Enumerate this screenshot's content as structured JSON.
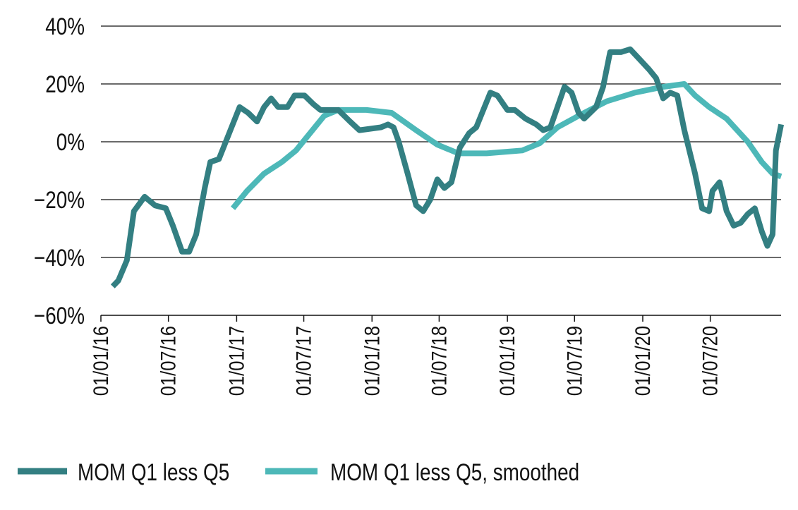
{
  "chart_data": {
    "type": "line",
    "title": "",
    "xlabel": "",
    "ylabel": "",
    "ylim": [
      -60,
      40
    ],
    "yticks": [
      40,
      20,
      0,
      -20,
      -40,
      -60
    ],
    "ytick_labels": [
      "40%",
      "20%",
      "0%",
      "−20%",
      "−40%",
      "−60%"
    ],
    "xlim": [
      "2016-01-01",
      "2021-01-08"
    ],
    "xticks": [
      "2016-01-01",
      "2016-07-01",
      "2017-01-01",
      "2017-07-01",
      "2018-01-01",
      "2018-07-01",
      "2019-01-01",
      "2019-07-01",
      "2020-01-01",
      "2020-07-01"
    ],
    "xtick_labels": [
      "01/01/16",
      "01/07/16",
      "01/01/17",
      "01/07/17",
      "01/01/18",
      "01/07/18",
      "01/01/19",
      "01/07/19",
      "01/01/20",
      "01/07/20"
    ],
    "grid": "horizontal",
    "legend_position": "bottom",
    "series": [
      {
        "name": "MOM Q1 less Q5",
        "color": "#337f82",
        "x": [
          "2016-02-02",
          "2016-02-17",
          "2016-03-11",
          "2016-03-30",
          "2016-04-28",
          "2016-05-26",
          "2016-06-24",
          "2016-07-13",
          "2016-08-07",
          "2016-08-26",
          "2016-09-14",
          "2016-10-07",
          "2016-10-22",
          "2016-11-14",
          "2016-12-12",
          "2017-01-09",
          "2017-02-01",
          "2017-02-25",
          "2017-03-16",
          "2017-04-04",
          "2017-04-23",
          "2017-05-18",
          "2017-06-06",
          "2017-07-03",
          "2017-07-27",
          "2017-08-15",
          "2017-10-02",
          "2017-11-03",
          "2017-11-28",
          "2018-01-25",
          "2018-02-13",
          "2018-02-28",
          "2018-03-14",
          "2018-04-07",
          "2018-04-30",
          "2018-05-19",
          "2018-06-07",
          "2018-06-26",
          "2018-07-15",
          "2018-08-03",
          "2018-08-26",
          "2018-09-20",
          "2018-10-09",
          "2018-10-28",
          "2018-11-16",
          "2018-12-05",
          "2019-01-01",
          "2019-01-21",
          "2019-02-19",
          "2019-03-20",
          "2019-04-08",
          "2019-04-27",
          "2019-05-16",
          "2019-06-04",
          "2019-06-23",
          "2019-07-12",
          "2019-07-27",
          "2019-08-28",
          "2019-09-16",
          "2019-10-05",
          "2019-11-03",
          "2019-11-28",
          "2019-12-20",
          "2020-01-18",
          "2020-02-06",
          "2020-02-25",
          "2020-03-15",
          "2020-04-03",
          "2020-04-22",
          "2020-05-21",
          "2020-06-09",
          "2020-06-28",
          "2020-07-07",
          "2020-07-26",
          "2020-08-14",
          "2020-09-02",
          "2020-09-21",
          "2020-10-10",
          "2020-10-29",
          "2020-11-17",
          "2020-12-02",
          "2020-12-16",
          "2020-12-25",
          "2021-01-08"
        ],
        "values": [
          -50,
          -48,
          -41,
          -24,
          -19,
          -22,
          -23,
          -29,
          -38,
          -38,
          -32,
          -16,
          -7,
          -6,
          3,
          12,
          10,
          7,
          12,
          15,
          12,
          12,
          16,
          16,
          13,
          11,
          11,
          7,
          4,
          5,
          6,
          5,
          0,
          -11,
          -22,
          -24,
          -20,
          -13,
          -16,
          -14,
          -2,
          3,
          5,
          11,
          17,
          16,
          11,
          11,
          8,
          6,
          4,
          5,
          12,
          19,
          17,
          10,
          8,
          12,
          19,
          31,
          31,
          32,
          29,
          25,
          22,
          15,
          17,
          16,
          4,
          -11,
          -23,
          -24,
          -17,
          -14,
          -24,
          -29,
          -28,
          -25,
          -23,
          -31,
          -36,
          -32,
          -3,
          6
        ]
      },
      {
        "name": "MOM Q1 less Q5, smoothed",
        "color": "#4db8b8",
        "x": [
          "2016-12-22",
          "2017-01-29",
          "2017-03-16",
          "2017-05-03",
          "2017-06-10",
          "2017-07-18",
          "2017-08-25",
          "2017-10-02",
          "2017-12-17",
          "2018-02-23",
          "2018-04-30",
          "2018-06-26",
          "2018-08-22",
          "2018-11-06",
          "2019-02-10",
          "2019-03-29",
          "2019-05-16",
          "2019-07-12",
          "2019-09-26",
          "2019-12-11",
          "2020-02-25",
          "2020-04-22",
          "2020-05-21",
          "2020-06-28",
          "2020-08-14",
          "2020-10-10",
          "2020-11-17",
          "2020-12-16",
          "2021-01-08"
        ],
        "values": [
          -23,
          -17,
          -11,
          -7,
          -3,
          3,
          9,
          11,
          11,
          10,
          4,
          -1,
          -4,
          -4,
          -3,
          -0.5,
          5,
          9,
          14,
          17,
          19,
          20,
          16,
          12,
          8,
          0,
          -7,
          -11,
          -12
        ]
      }
    ]
  }
}
